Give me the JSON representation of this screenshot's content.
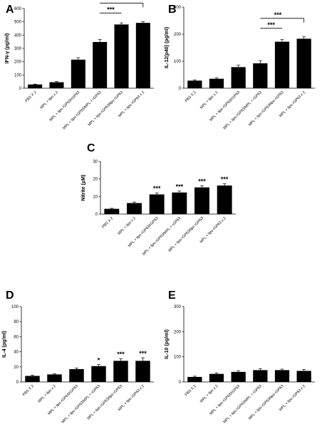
{
  "chart_data": [
    {
      "panel": "A",
      "type": "bar",
      "ylabel": "IFN-γ (pg/ml)",
      "ylim": [
        0,
        600
      ],
      "yticks": [
        0,
        100,
        200,
        300,
        400,
        500,
        600
      ],
      "categories": [
        "PBS X 2",
        "MPL + lipo x 2",
        "MPL + lipo rGP63/rGP63",
        "MPL + lipo rGP63/MPL + rGP63",
        "MPL + lipo rGP63/lipo rGP63",
        "MPL + lipo rGP63 x 2"
      ],
      "values": [
        28,
        45,
        215,
        348,
        480,
        492
      ],
      "errors": [
        3,
        5,
        15,
        20,
        12,
        10
      ],
      "bar_stars": [
        "",
        "",
        "",
        "",
        "",
        ""
      ],
      "brackets": [
        {
          "from": 3,
          "to": 4,
          "label": "***"
        },
        {
          "from": 3,
          "to": 5,
          "label": "***"
        }
      ]
    },
    {
      "panel": "B",
      "type": "bar",
      "ylabel": "IL-12(p40) (pg/ml)",
      "ylim": [
        0,
        300
      ],
      "yticks": [
        0,
        100,
        200,
        300
      ],
      "categories": [
        "PBS X 2",
        "MPL + lipo x 2",
        "MPL + lipo rGP63/rGP63",
        "MPL + lipo rGP63/MPL + rGP63",
        "MPL + lipo rGP63/lipo rGP63",
        "MPL + lipo rGP63 x 2"
      ],
      "values": [
        28,
        35,
        78,
        92,
        172,
        183
      ],
      "errors": [
        3,
        4,
        7,
        9,
        8,
        7
      ],
      "bar_stars": [
        "",
        "",
        "",
        "",
        "",
        ""
      ],
      "brackets": [
        {
          "from": 3,
          "to": 4,
          "label": "***"
        },
        {
          "from": 3,
          "to": 5,
          "label": "***"
        }
      ]
    },
    {
      "panel": "C",
      "type": "bar",
      "ylabel": "Nitrite (μM)",
      "ylim": [
        0,
        30
      ],
      "yticks": [
        0,
        10,
        20,
        30
      ],
      "categories": [
        "PBS X 2",
        "MPL + lipo x 2",
        "MPL + lipo rGP63/rGP63",
        "MPL + lipo rGP63/MPL + rGP63",
        "MPL + lipo rGP63/lipo rGP63",
        "MPL + lipo rGP63 x 2"
      ],
      "values": [
        3.0,
        6.3,
        11.2,
        12.3,
        15.2,
        16.3
      ],
      "errors": [
        0.3,
        0.6,
        0.9,
        0.8,
        1.0,
        1.1
      ],
      "bar_stars": [
        "",
        "",
        "***",
        "***",
        "***",
        "***"
      ],
      "brackets": []
    },
    {
      "panel": "D",
      "type": "bar",
      "ylabel": "IL-4 (pg/ml)",
      "ylim": [
        0,
        100
      ],
      "yticks": [
        0,
        20,
        40,
        60,
        80,
        100
      ],
      "categories": [
        "PBS X 2",
        "MPL + lipo x 2",
        "MPL + lipo rGP63/rGP63",
        "MPL + lipo rGP63/MPL + rGP63",
        "MPL + lipo rGP63/lipo rGP63",
        "MPL + lipo rGP63 x 2"
      ],
      "values": [
        8,
        10,
        17,
        21,
        28,
        28
      ],
      "errors": [
        1,
        1,
        1.5,
        2,
        3,
        4
      ],
      "bar_stars": [
        "",
        "",
        "",
        "*",
        "***",
        "***"
      ],
      "brackets": []
    },
    {
      "panel": "E",
      "type": "bar",
      "ylabel": "IL-10 (pg/ml)",
      "ylim": [
        0,
        300
      ],
      "yticks": [
        0,
        100,
        200,
        300
      ],
      "categories": [
        "PBS X 2",
        "MPL + lipo x 2",
        "MPL + lipo rGP63/rGP63",
        "MPL + lipo rGP63/MPL + rGP63",
        "MPL + lipo rGP63/lipo rGP63",
        "MPL + lipo rGP63 x 2"
      ],
      "values": [
        20,
        32,
        40,
        47,
        47,
        44
      ],
      "errors": [
        3,
        4,
        5,
        6,
        4,
        6
      ],
      "bar_stars": [
        "",
        "",
        "",
        "",
        "",
        ""
      ],
      "brackets": []
    }
  ]
}
